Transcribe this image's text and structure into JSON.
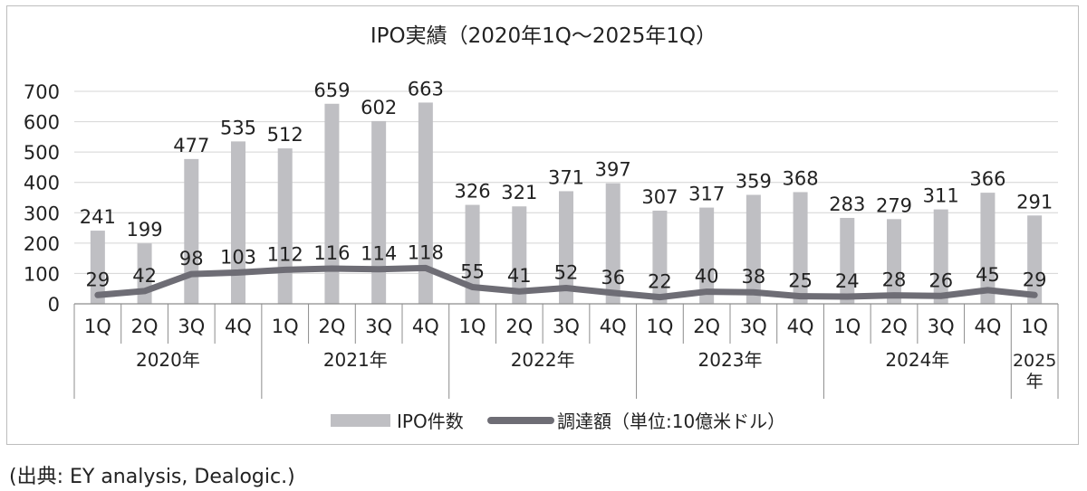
{
  "colors": {
    "bar": "#bfbfc3",
    "line": "#6e6d75",
    "axis": "#8c8c8c",
    "grid": "#d4d4d4",
    "text": "#222222"
  },
  "chart_data": {
    "type": "bar",
    "title": "IPO実績（2020年1Q～2025年1Q）",
    "quarters": [
      "1Q",
      "2Q",
      "3Q",
      "4Q",
      "1Q",
      "2Q",
      "3Q",
      "4Q",
      "1Q",
      "2Q",
      "3Q",
      "4Q",
      "1Q",
      "2Q",
      "3Q",
      "4Q",
      "1Q",
      "2Q",
      "3Q",
      "4Q",
      "1Q"
    ],
    "year_groups": [
      {
        "label": "2020年",
        "count": 4
      },
      {
        "label": "2021年",
        "count": 4
      },
      {
        "label": "2022年",
        "count": 4
      },
      {
        "label": "2023年",
        "count": 4
      },
      {
        "label": "2024年",
        "count": 4
      },
      {
        "label": "2025年",
        "count": 1
      }
    ],
    "series": [
      {
        "name": "IPO件数",
        "type": "bar",
        "values": [
          241,
          199,
          477,
          535,
          512,
          659,
          602,
          663,
          326,
          321,
          371,
          397,
          307,
          317,
          359,
          368,
          283,
          279,
          311,
          366,
          291
        ]
      },
      {
        "name": "調達額（単位:10億米ドル）",
        "type": "line",
        "values": [
          29,
          42,
          98,
          103,
          112,
          116,
          114,
          118,
          55,
          41,
          52,
          36,
          22,
          40,
          38,
          25,
          24,
          28,
          26,
          45,
          29
        ]
      }
    ],
    "ylim": [
      0,
      700
    ],
    "yticks": [
      0,
      100,
      200,
      300,
      400,
      500,
      600,
      700
    ],
    "grid": true,
    "legend": "bottom"
  },
  "source": "(出典: EY analysis, Dealogic.)"
}
